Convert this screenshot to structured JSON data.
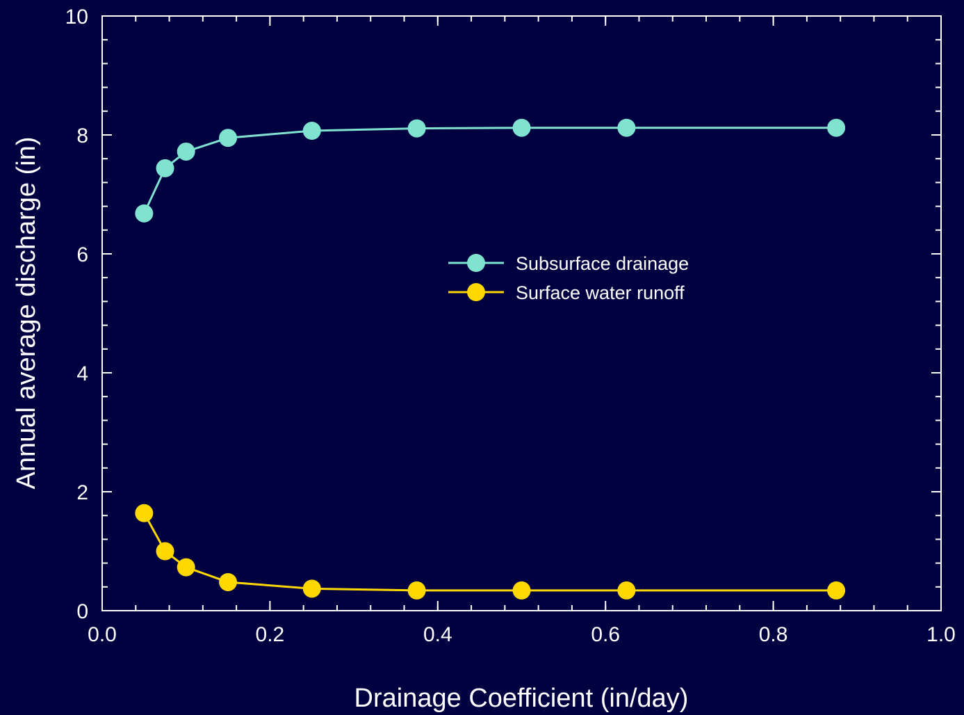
{
  "chart_data": {
    "type": "line",
    "xlabel": "Drainage Coefficient (in/day)",
    "ylabel": "Annual average discharge (in)",
    "xlim": [
      0.0,
      1.0
    ],
    "ylim": [
      0,
      10
    ],
    "x_ticks": [
      "0.0",
      "0.2",
      "0.4",
      "0.6",
      "0.8",
      "1.0"
    ],
    "y_ticks": [
      "0",
      "2",
      "4",
      "6",
      "8",
      "10"
    ],
    "x_minor_step": 0.04,
    "y_minor_step": 0.4,
    "grid": false,
    "legend_position": "center",
    "series": [
      {
        "name": "Subsurface drainage",
        "color": "#7fe3d0",
        "x": [
          0.05,
          0.075,
          0.1,
          0.15,
          0.25,
          0.375,
          0.5,
          0.625,
          0.875
        ],
        "y": [
          6.68,
          7.44,
          7.72,
          7.95,
          8.07,
          8.11,
          8.12,
          8.12,
          8.12
        ]
      },
      {
        "name": "Surface water runoff",
        "color": "#ffd800",
        "x": [
          0.05,
          0.075,
          0.1,
          0.15,
          0.25,
          0.375,
          0.5,
          0.625,
          0.875
        ],
        "y": [
          1.64,
          1.0,
          0.73,
          0.48,
          0.37,
          0.34,
          0.34,
          0.34,
          0.34
        ]
      }
    ]
  }
}
